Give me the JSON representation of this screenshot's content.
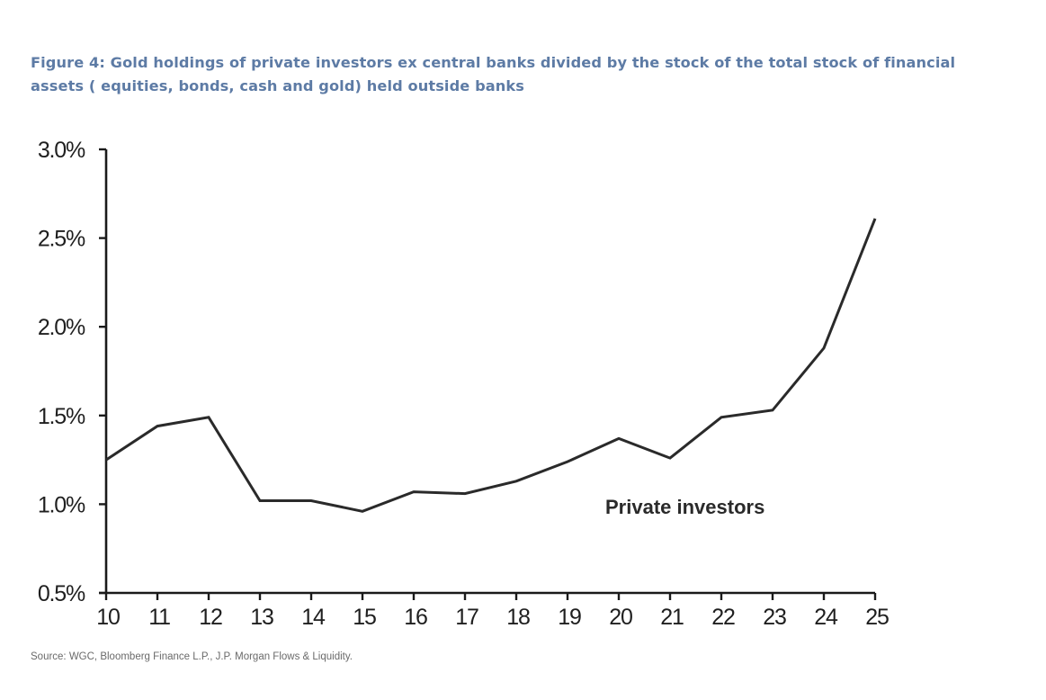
{
  "chart_data": {
    "type": "line",
    "title": "Figure 4: Gold holdings of private investors ex central banks divided by the stock of the total stock of financial assets ( equities, bonds, cash and gold) held outside banks",
    "xlabel": "",
    "ylabel": "",
    "x": [
      "10",
      "11",
      "12",
      "13",
      "14",
      "15",
      "16",
      "17",
      "18",
      "19",
      "20",
      "21",
      "22",
      "23",
      "24",
      "25"
    ],
    "series": [
      {
        "name": "Private investors",
        "values": [
          1.25,
          1.44,
          1.49,
          1.02,
          1.02,
          0.96,
          1.07,
          1.06,
          1.13,
          1.24,
          1.37,
          1.26,
          1.49,
          1.53,
          1.88,
          2.61
        ],
        "color": "#2a2a2a"
      }
    ],
    "ylim": [
      0.5,
      3.0
    ],
    "yticks": [
      0.5,
      1.0,
      1.5,
      2.0,
      2.5,
      3.0
    ],
    "ytick_labels": [
      "0.5%",
      "1.0%",
      "1.5%",
      "2.0%",
      "2.5%",
      "3.0%"
    ],
    "xtick_labels": [
      "10",
      "11",
      "12",
      "13",
      "14",
      "15",
      "16",
      "17",
      "18",
      "19",
      "20",
      "21",
      "22",
      "23",
      "24",
      "25"
    ],
    "grid": false,
    "annotations": [
      {
        "text": "Private investors",
        "x": "20",
        "y": 1.0
      }
    ],
    "source": "Source: WGC, Bloomberg Finance L.P., J.P. Morgan Flows & Liquidity.",
    "colors": {
      "title": "#5d7ba5",
      "axis": "#1a1a1a",
      "line": "#2a2a2a",
      "source": "#6a6a6a"
    }
  }
}
